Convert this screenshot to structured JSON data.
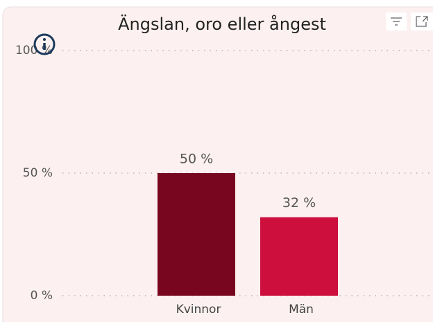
{
  "chart_data": {
    "type": "bar",
    "title": "Ängslan, oro eller ångest",
    "categories": [
      "Kvinnor",
      "Män"
    ],
    "values": [
      50,
      32
    ],
    "value_labels": [
      "50 %",
      "32 %"
    ],
    "colors": [
      "#78061f",
      "#cc0f3d"
    ],
    "ylim": [
      0,
      100
    ],
    "yticks": [
      {
        "value": 0,
        "label": "0 %"
      },
      {
        "value": 50,
        "label": "50 %"
      },
      {
        "value": 100,
        "label": "100 %"
      }
    ],
    "grid": true
  }
}
